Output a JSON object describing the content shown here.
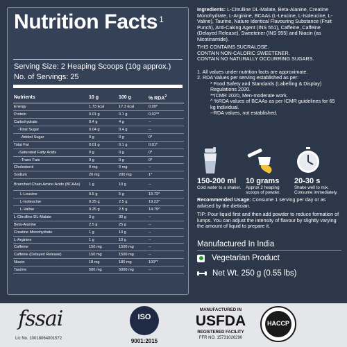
{
  "nutrition": {
    "title": "Nutrition Facts",
    "title_sup": "1",
    "serving_size": "Serving Size: 2 Heaping Scoops (10g approx.)",
    "servings": "No. of Servings: 25",
    "headers": [
      "Nutrients",
      "10 g",
      "100 g",
      "% RDA"
    ],
    "rda_sup": "2",
    "rows": [
      {
        "name": "Energy",
        "a": "1.73 kcal",
        "b": "17.3 kcal",
        "c": "0.09*",
        "indent": 0
      },
      {
        "name": "Protein",
        "a": "0.01 g",
        "b": "0.1 g",
        "c": "0.02**",
        "indent": 0
      },
      {
        "name": "Carbohydrate",
        "a": "0.4 g",
        "b": "4 g",
        "c": "--",
        "indent": 0
      },
      {
        "name": "-Total Sugar",
        "a": "0.04 g",
        "b": "0.4 g",
        "c": "--",
        "indent": 1
      },
      {
        "name": "-Added Sugar",
        "a": "0 g",
        "b": "0 g",
        "c": "0*",
        "indent": 2
      },
      {
        "name": "Total Fat",
        "a": "0.01 g",
        "b": "0.1 g",
        "c": "0.01*",
        "indent": 0
      },
      {
        "name": "-Saturated Fatty Acids",
        "a": "0 g",
        "b": "0 g",
        "c": "0*",
        "indent": 1
      },
      {
        "name": "-Trans Fats",
        "a": "0 g",
        "b": "0 g",
        "c": "0*",
        "indent": 2
      },
      {
        "name": "Cholesterol",
        "a": "0 mg",
        "b": "0 mg",
        "c": "--",
        "indent": 0
      },
      {
        "name": "Sodium",
        "a": "20 mg",
        "b": "200 mg",
        "c": "1*",
        "indent": 0
      },
      {
        "name": "Branched Chain Amino Acids (BCAAs)",
        "a": "1 g",
        "b": "10 g",
        "c": "--",
        "indent": 0,
        "tall": true
      },
      {
        "name": "L-Leucine",
        "a": "0.5 g",
        "b": "5 g",
        "c": "19.72^",
        "indent": 2
      },
      {
        "name": "L-Isoleucine",
        "a": "0.25 g",
        "b": "2.5 g",
        "c": "19.23^",
        "indent": 2
      },
      {
        "name": "L-Valine",
        "a": "0.25 g",
        "b": "2.5 g",
        "c": "14.79^",
        "indent": 2
      },
      {
        "name": "L-Citrulline DL-Malate",
        "a": "3 g",
        "b": "30 g",
        "c": "--",
        "indent": 0
      },
      {
        "name": "Beta-Alanine",
        "a": "2.5 g",
        "b": "25 g",
        "c": "--",
        "indent": 0
      },
      {
        "name": "Creatine Monohydrate",
        "a": "1 g",
        "b": "10 g",
        "c": "--",
        "indent": 0
      },
      {
        "name": "L-Arginine",
        "a": "1 g",
        "b": "10 g",
        "c": "--",
        "indent": 0
      },
      {
        "name": "Caffeine",
        "a": "150 mg",
        "b": "1500 mg",
        "c": "--",
        "indent": 0
      },
      {
        "name": "Caffeine (Delayed Release)",
        "a": "150 mg",
        "b": "1500 mg",
        "c": "--",
        "indent": 0
      },
      {
        "name": "Niacin",
        "a": "18 mg",
        "b": "180 mg",
        "c": "100**",
        "indent": 0
      },
      {
        "name": "Taurine",
        "a": "500 mg",
        "b": "5000 mg",
        "c": "--",
        "indent": 0
      }
    ]
  },
  "ingredients": {
    "label": "Ingredients:",
    "text": "L-Citrulline DL-Malate, Beta-Alanine, Creatine Monohydrate, L-Arginine, BCAAs (L-Leucine, L-Isoleucine, L-Valine), Taurine, Nature Identical Flavouring Substance (Fruit Punch), Anti-Caking Agent (INS 551), Caffeine, Caffeine (Delayed Release), Sweetener (INS 955) and Niacin (as Nicotinamide)."
  },
  "warnings": [
    "THIS CONTAINS SUCRALOSE.",
    "CONTAIN NON-CALORIC SWEETENER.",
    "CONTAIN NO NATURALLY OCCURRING SUGARS."
  ],
  "notes": [
    {
      "text": "1.  All values under nutrition facts  are approximate.",
      "level": 0
    },
    {
      "text": "2.  RDA Values per serving established as per:",
      "level": 0
    },
    {
      "text": "*  Food Safety and Standards (Labelling & Display) Regulations 2020.",
      "level": 1
    },
    {
      "text": "**ICMR 2020, Men-moderate work.",
      "level": 1
    },
    {
      "text": "^  %RDA values of BCAAs as per ICMR guidelines for 65 kg individual.",
      "level": 1
    },
    {
      "text": "--RDA values, not established.",
      "level": 1
    }
  ],
  "steps": [
    {
      "big": "150-200 ml",
      "small": "Cold water to a shaker.",
      "icon": "shaker-icon"
    },
    {
      "big": "10 grams",
      "small": "Approx 2 heaping scoops of powder.",
      "icon": "scoop-icon"
    },
    {
      "big": "20-30 s",
      "small": "Shake well to mix. Consume immediately.",
      "icon": "clock-icon"
    }
  ],
  "usage": {
    "label": "Recommended Usage:",
    "text": "Consume 1 serving per day or as advised by the dietician."
  },
  "tip": "TIP: Pour liquid first and then add powder to reduce formation of lumps. You can adjust the intensity of flavour by slightly varying the amount of liquid to prepare it.",
  "made_in": "Manufactured In India",
  "veg": "Vegetarian Product",
  "net_wt": "Net Wt. 250 g (0.55 lbs)",
  "footer": {
    "fssai_word": "fssai",
    "fssai_lic": "Lic No. 10018064001572",
    "iso_label": "ISO",
    "iso_number": "9001:2015",
    "usfda_top": "MANUFACTURED IN",
    "usfda_word": "USFDA",
    "usfda_reg": "REGISTERED FACILITY",
    "usfda_no": "FFR NO. 15731026290",
    "haccp_label": "HACCP"
  },
  "colors": {
    "background": "#2c3749",
    "panel": "#344157",
    "veg_green": "#2e9b3a",
    "footer_bg": "#e5e6e9"
  }
}
